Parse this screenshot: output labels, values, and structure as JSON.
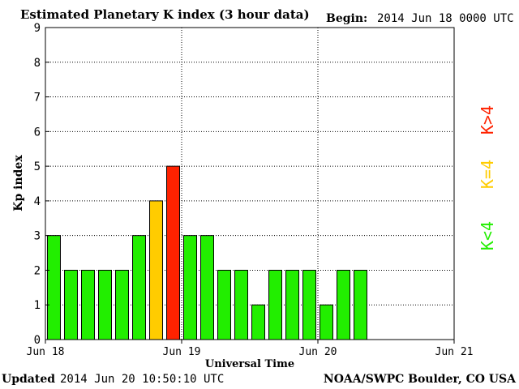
{
  "header": {
    "title": "Estimated Planetary K index (3 hour data)",
    "begin_label": "Begin:",
    "begin_value": "2014 Jun 18 0000 UTC"
  },
  "footer": {
    "updated_label": "Updated",
    "updated_value": "2014 Jun 20 10:50:10 UTC",
    "credit": "NOAA/SWPC Boulder, CO USA"
  },
  "legend": {
    "below": "K<4",
    "equal": "K=4",
    "above": "K>4"
  },
  "colors": {
    "below": "#22ee00",
    "equal": "#ffcc00",
    "above": "#ff2200",
    "grid": "#000000"
  },
  "chart_data": {
    "type": "bar",
    "title": "Estimated Planetary K index (3 hour data)",
    "xlabel": "Universal Time",
    "ylabel": "Kp index",
    "ylim": [
      0,
      9
    ],
    "yticks": [
      0,
      1,
      2,
      3,
      4,
      5,
      6,
      7,
      8,
      9
    ],
    "xticks": [
      "Jun 18",
      "Jun 19",
      "Jun 20",
      "Jun 21"
    ],
    "slots_per_day": 8,
    "days": 3,
    "grid": "dotted",
    "values": [
      3,
      2,
      2,
      2,
      2,
      3,
      4,
      5,
      3,
      3,
      2,
      2,
      1,
      2,
      2,
      2,
      1,
      2,
      2
    ]
  }
}
